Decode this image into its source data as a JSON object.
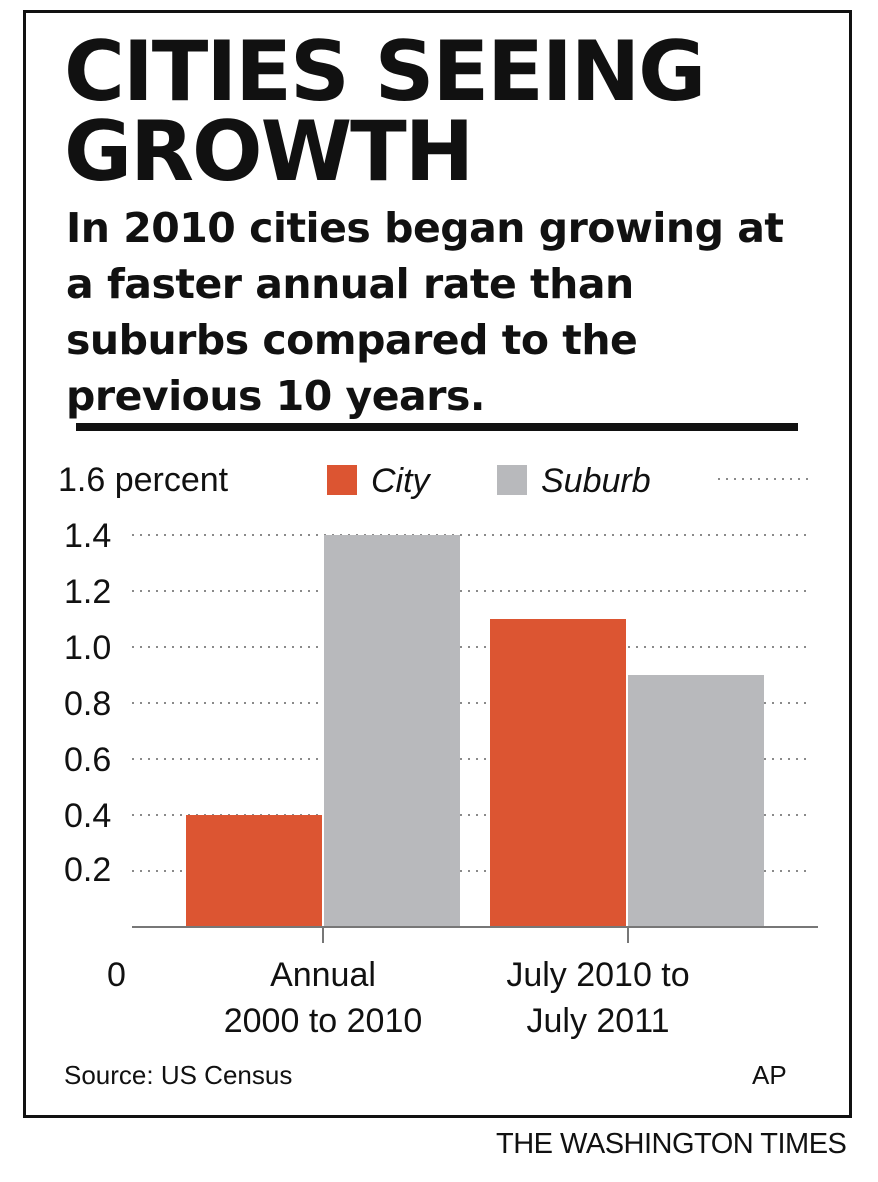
{
  "title": "CITIES SEEING GROWTH",
  "subtitle": "In 2010 cities began growing at a faster annual rate than suburbs compared to the previous 10 years.",
  "source": "Source: US Census",
  "credit": "AP",
  "publisher": "THE WASHINGTON TIMES",
  "chart_data": {
    "type": "bar",
    "title": "CITIES SEEING GROWTH",
    "xlabel": "",
    "ylabel": "",
    "ylim": [
      0,
      1.6
    ],
    "y_ticks": [
      {
        "value": 0,
        "label": "0"
      },
      {
        "value": 0.2,
        "label": "0.2"
      },
      {
        "value": 0.4,
        "label": "0.4"
      },
      {
        "value": 0.6,
        "label": "0.6"
      },
      {
        "value": 0.8,
        "label": "0.8"
      },
      {
        "value": 1.0,
        "label": "1.0"
      },
      {
        "value": 1.2,
        "label": "1.2"
      },
      {
        "value": 1.4,
        "label": "1.4"
      },
      {
        "value": 1.6,
        "label": "1.6 percent"
      }
    ],
    "grid": "dotted",
    "legend_position": "top",
    "categories": [
      [
        "Annual",
        "2000 to 2010"
      ],
      [
        "July 2010 to",
        "July 2011"
      ]
    ],
    "series": [
      {
        "name": "City",
        "color": "#dc5532",
        "values": [
          0.4,
          1.1
        ]
      },
      {
        "name": "Suburb",
        "color": "#b8b9bc",
        "values": [
          1.4,
          0.9
        ]
      }
    ]
  }
}
